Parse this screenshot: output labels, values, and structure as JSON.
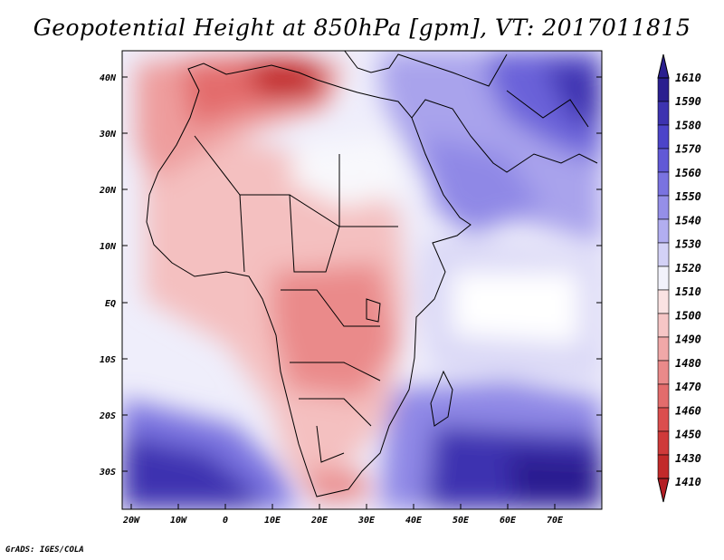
{
  "title": "Geopotential Height at 850hPa [gpm], VT: 2017011815",
  "credit": "GrADS: IGES/COLA",
  "map": {
    "lat_labels": [
      "40N",
      "30N",
      "20N",
      "10N",
      "EQ",
      "10S",
      "20S",
      "30S"
    ],
    "lon_labels": [
      "20W",
      "10W",
      "0",
      "10E",
      "20E",
      "30E",
      "40E",
      "50E",
      "60E",
      "70E"
    ]
  },
  "colorbar": {
    "levels": [
      "1610",
      "1590",
      "1580",
      "1570",
      "1560",
      "1550",
      "1540",
      "1530",
      "1520",
      "1510",
      "1500",
      "1490",
      "1480",
      "1470",
      "1460",
      "1450",
      "1430",
      "1410"
    ],
    "top_color": "#2a1f8f",
    "bottom_color": "#b41e24",
    "colors": [
      "#2a1f8f",
      "#3d33b0",
      "#4c44c9",
      "#6159d6",
      "#7a73e0",
      "#958fe8",
      "#b2aef0",
      "#d3d1f6",
      "#f2f2fb",
      "#fae2e2",
      "#f6c6c6",
      "#f0a8a8",
      "#ea8a8a",
      "#e36c6c",
      "#db4e4e",
      "#cf3a3a",
      "#c22a2a"
    ]
  }
}
